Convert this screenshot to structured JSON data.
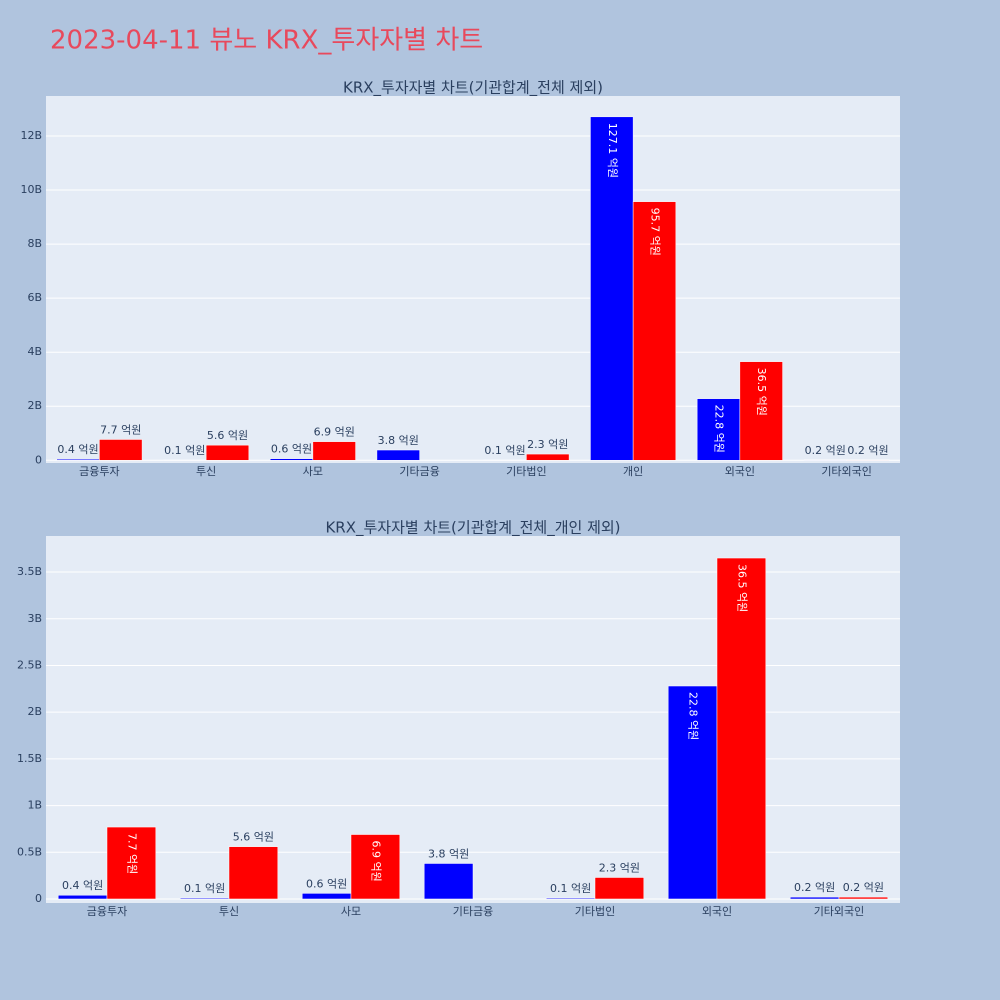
{
  "title": "2023-04-11 뷰노 KRX_투자자별 차트",
  "chart_data": [
    {
      "type": "bar",
      "title": "KRX_투자자별 차트(기관합계_전체 제외)",
      "categories": [
        "금융투자",
        "투신",
        "사모",
        "기타금융",
        "기타법인",
        "개인",
        "외국인",
        "기타외국인"
      ],
      "series": [
        {
          "color": "#0000ff",
          "values": [
            40000000,
            10000000,
            60000000,
            380000000,
            10000000,
            12710000000,
            2280000000,
            20000000
          ],
          "value_labels": [
            "0.4 억원",
            "0.1 억원",
            "0.6 억원",
            "3.8 억원",
            "0.1 억원",
            "127.1 억원",
            "22.8 억원",
            "0.2 억원"
          ]
        },
        {
          "color": "#ff0000",
          "values": [
            770000000,
            560000000,
            690000000,
            null,
            230000000,
            9570000000,
            3650000000,
            20000000
          ],
          "value_labels": [
            "7.7 억원",
            "5.6 억원",
            "6.9 억원",
            null,
            "2.3 억원",
            "95.7 억원",
            "36.5 억원",
            "0.2 억원"
          ]
        }
      ],
      "ylim": [
        -100000000,
        13480000000
      ],
      "yticks": [
        0,
        {
          "value": 2000000000,
          "label": "2B"
        },
        {
          "value": 4000000000,
          "label": "4B"
        },
        {
          "value": 6000000000,
          "label": "6B"
        },
        {
          "value": 8000000000,
          "label": "8B"
        },
        {
          "value": 10000000000,
          "label": "10B"
        },
        {
          "value": 12000000000,
          "label": "12B"
        }
      ],
      "grid": true
    },
    {
      "type": "bar",
      "title": "KRX_투자자별 차트(기관합계_전체_개인 제외)",
      "categories": [
        "금융투자",
        "투신",
        "사모",
        "기타금융",
        "기타법인",
        "외국인",
        "기타외국인"
      ],
      "series": [
        {
          "color": "#0000ff",
          "values": [
            40000000,
            10000000,
            60000000,
            380000000,
            10000000,
            2280000000,
            20000000
          ],
          "value_labels": [
            "0.4 억원",
            "0.1 억원",
            "0.6 억원",
            "3.8 억원",
            "0.1 억원",
            "22.8 억원",
            "0.2 억원"
          ]
        },
        {
          "color": "#ff0000",
          "values": [
            770000000,
            560000000,
            690000000,
            null,
            230000000,
            3650000000,
            20000000
          ],
          "value_labels": [
            "7.7 억원",
            "5.6 억원",
            "6.9 억원",
            null,
            "2.3 억원",
            "36.5 억원",
            "0.2 억원"
          ]
        }
      ],
      "ylim": [
        -43000000,
        3886000000
      ],
      "yticks": [
        0,
        {
          "value": 500000000,
          "label": "0.5B"
        },
        {
          "value": 1000000000,
          "label": "1B"
        },
        {
          "value": 1500000000,
          "label": "1.5B"
        },
        {
          "value": 2000000000,
          "label": "2B"
        },
        {
          "value": 2500000000,
          "label": "2.5B"
        },
        {
          "value": 3000000000,
          "label": "3B"
        },
        {
          "value": 3500000000,
          "label": "3.5B"
        }
      ],
      "grid": true
    }
  ]
}
